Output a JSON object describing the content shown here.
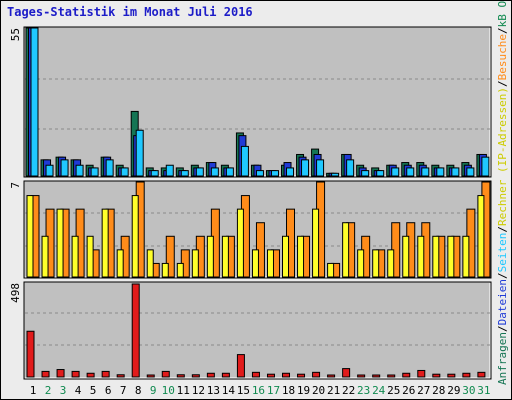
{
  "title": "Tages-Statistik im Monat Juli 2016",
  "colors": {
    "background": "#ececec",
    "panel": "#c0c0c0",
    "anfragen": "#157554",
    "dateien": "#1f3bd6",
    "seiten": "#1fc8ff",
    "rechner": "#ffff2a",
    "besuche": "#ff8c1a",
    "kbf": "#e11b1b",
    "title": "#1c1cc8",
    "weekend_label": "#118a50"
  },
  "chart_data": [
    {
      "type": "bar",
      "name": "requests",
      "ymax_label": "55",
      "ymax": 55,
      "x": [
        1,
        2,
        3,
        4,
        5,
        6,
        7,
        8,
        9,
        10,
        11,
        12,
        13,
        14,
        15,
        16,
        17,
        18,
        19,
        20,
        21,
        22,
        23,
        24,
        25,
        26,
        27,
        28,
        29,
        30,
        31
      ],
      "weekend_days": [
        2,
        3,
        9,
        10,
        16,
        17,
        23,
        24,
        30,
        31
      ],
      "series": [
        {
          "name": "Anfragen",
          "color": "#157554",
          "values": [
            55,
            6,
            7,
            6,
            4,
            7,
            4,
            24,
            3,
            3,
            3,
            4,
            5,
            4,
            16,
            4,
            2,
            4,
            8,
            10,
            1,
            8,
            4,
            3,
            4,
            5,
            5,
            4,
            4,
            5,
            8
          ]
        },
        {
          "name": "Dateien",
          "color": "#1f3bd6",
          "values": [
            55,
            6,
            7,
            6,
            3,
            7,
            3,
            15,
            2,
            2,
            2,
            3,
            5,
            3,
            15,
            4,
            2,
            5,
            7,
            8,
            1,
            8,
            3,
            2,
            4,
            4,
            4,
            3,
            3,
            4,
            8
          ]
        },
        {
          "name": "Seiten",
          "color": "#1fc8ff",
          "values": [
            55,
            4,
            6,
            4,
            3,
            6,
            3,
            17,
            2,
            4,
            2,
            3,
            3,
            3,
            11,
            2,
            2,
            3,
            6,
            6,
            1,
            6,
            2,
            2,
            3,
            3,
            3,
            3,
            3,
            3,
            7
          ]
        }
      ],
      "legend": [
        "Anfragen",
        "Dateien",
        "Seiten"
      ]
    },
    {
      "type": "bar",
      "name": "hosts-visits",
      "ymax_label": "7",
      "ymax": 7,
      "x": [
        1,
        2,
        3,
        4,
        5,
        6,
        7,
        8,
        9,
        10,
        11,
        12,
        13,
        14,
        15,
        16,
        17,
        18,
        19,
        20,
        21,
        22,
        23,
        24,
        25,
        26,
        27,
        28,
        29,
        30,
        31
      ],
      "series": [
        {
          "name": "Rechner (IP-Adressen)",
          "color": "#ffff2a",
          "values": [
            6,
            3,
            5,
            3,
            3,
            5,
            2,
            6,
            2,
            1,
            1,
            2,
            3,
            3,
            5,
            2,
            2,
            3,
            3,
            5,
            1,
            4,
            2,
            2,
            2,
            3,
            3,
            3,
            3,
            3,
            6
          ]
        },
        {
          "name": "Besuche",
          "color": "#ff8c1a",
          "values": [
            6,
            5,
            5,
            5,
            2,
            5,
            3,
            7,
            1,
            3,
            2,
            3,
            5,
            3,
            6,
            4,
            2,
            5,
            3,
            7,
            1,
            4,
            3,
            2,
            4,
            4,
            4,
            3,
            3,
            5,
            7
          ]
        }
      ],
      "legend": [
        "Besuche",
        "Rechner (IP-Adressen)"
      ]
    },
    {
      "type": "bar",
      "name": "kbytes",
      "ymax_label": "498",
      "ymax": 498,
      "x": [
        1,
        2,
        3,
        4,
        5,
        6,
        7,
        8,
        9,
        10,
        11,
        12,
        13,
        14,
        15,
        16,
        17,
        18,
        19,
        20,
        21,
        22,
        23,
        24,
        25,
        26,
        27,
        28,
        29,
        30,
        31
      ],
      "series": [
        {
          "name": "kB F",
          "color": "#e11b1b",
          "values": [
            245,
            30,
            40,
            30,
            20,
            30,
            12,
            498,
            6,
            30,
            12,
            12,
            20,
            20,
            120,
            25,
            15,
            20,
            15,
            25,
            6,
            45,
            8,
            8,
            10,
            20,
            35,
            15,
            15,
            20,
            25
          ]
        }
      ],
      "legend": [
        "kB F",
        "kB In",
        "kB Out"
      ]
    }
  ],
  "legend_text": [
    {
      "text": "Anfragen",
      "color": "#157554"
    },
    {
      "text": "/",
      "color": "#000000"
    },
    {
      "text": "Dateien",
      "color": "#1f3bd6"
    },
    {
      "text": "/",
      "color": "#000000"
    },
    {
      "text": "Seiten",
      "color": "#1fc8ff"
    },
    {
      "text": "/",
      "color": "#000000"
    },
    {
      "text": "Rechner (IP-Adressen)",
      "color": "#cccc00"
    },
    {
      "text": "/",
      "color": "#000000"
    },
    {
      "text": "Besuche",
      "color": "#ff8c1a"
    },
    {
      "text": "/",
      "color": "#000000"
    },
    {
      "text": "kB Out",
      "color": "#118a50"
    },
    {
      "text": "/",
      "color": "#000000"
    },
    {
      "text": "kB In",
      "color": "#1f8cff"
    },
    {
      "text": "/",
      "color": "#000000"
    },
    {
      "text": "kB F",
      "color": "#e11b1b"
    }
  ]
}
